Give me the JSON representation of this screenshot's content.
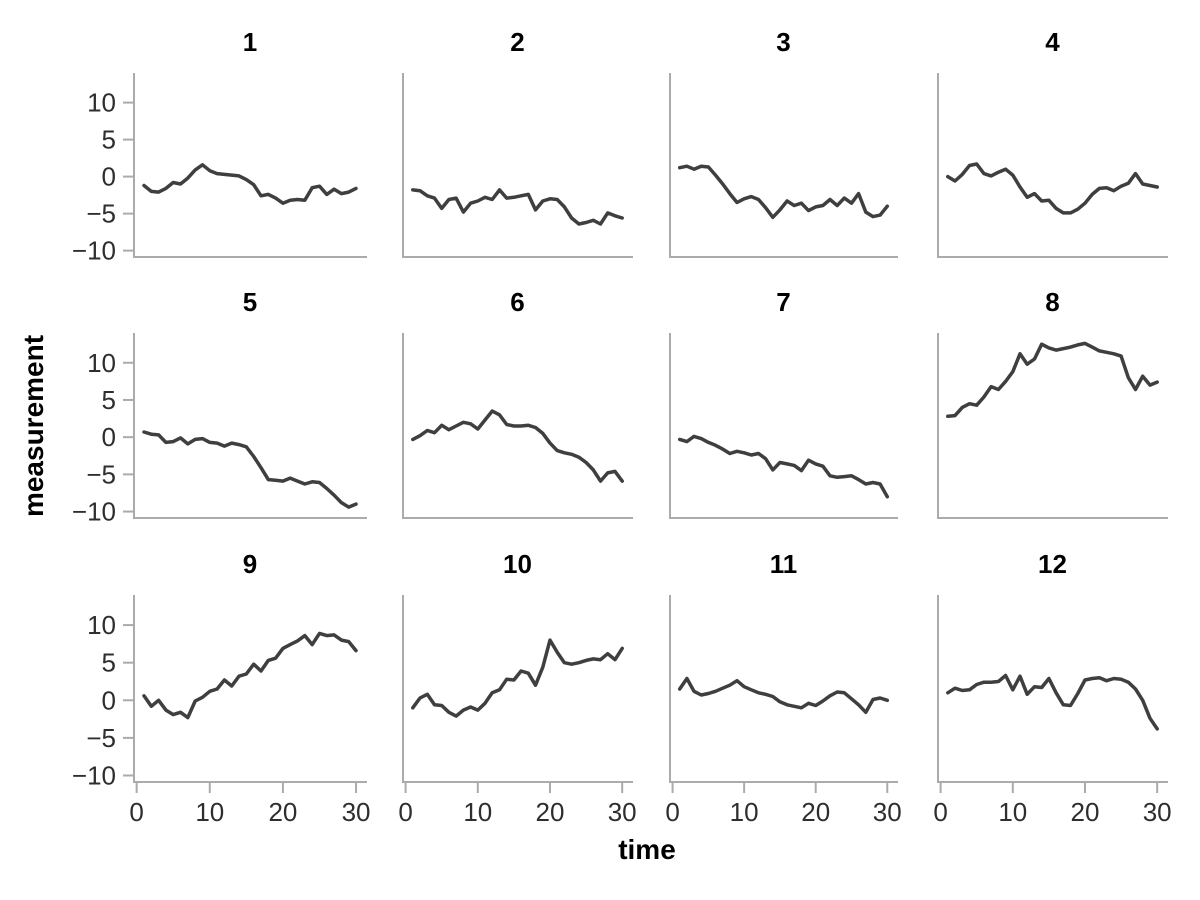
{
  "chart_data": {
    "type": "line",
    "title": "",
    "xlabel": "time",
    "ylabel": "measurement",
    "layout": "facet-grid-3-rows-4-cols",
    "grid": "off",
    "legend": "none",
    "x_range": [
      -0.5,
      31.5
    ],
    "y_range": [
      -11,
      14
    ],
    "x_tick_values": [
      0,
      10,
      20,
      30
    ],
    "x_tick_labels": [
      "0",
      "10",
      "20",
      "30"
    ],
    "y_tick_values": [
      10,
      5,
      0,
      -5,
      -10
    ],
    "y_tick_labels": [
      "10",
      "5",
      "0",
      "−5",
      "−10"
    ],
    "line_color": "#3f3f3f",
    "axis_color": "#ababab",
    "tick_label_color": "#2e2e2e",
    "strip_label_color": "#000000",
    "background_color": "#ffffff",
    "x": [
      1,
      2,
      3,
      4,
      5,
      6,
      7,
      8,
      9,
      10,
      11,
      12,
      13,
      14,
      15,
      16,
      17,
      18,
      19,
      20,
      21,
      22,
      23,
      24,
      25,
      26,
      27,
      28,
      29,
      30
    ],
    "series": [
      {
        "name": "1",
        "values": [
          -1.2,
          -2.0,
          -2.1,
          -1.6,
          -0.8,
          -1.0,
          -0.2,
          0.9,
          1.6,
          0.8,
          0.4,
          0.3,
          0.2,
          0.1,
          -0.4,
          -1.1,
          -2.6,
          -2.4,
          -2.9,
          -3.6,
          -3.2,
          -3.1,
          -3.2,
          -1.5,
          -1.3,
          -2.4,
          -1.7,
          -2.3,
          -2.1,
          -1.6
        ]
      },
      {
        "name": "2",
        "values": [
          -1.8,
          -1.9,
          -2.6,
          -2.9,
          -4.3,
          -3.1,
          -2.9,
          -4.8,
          -3.6,
          -3.3,
          -2.8,
          -3.1,
          -1.8,
          -2.9,
          -2.8,
          -2.6,
          -2.4,
          -4.5,
          -3.3,
          -3.0,
          -3.1,
          -4.1,
          -5.6,
          -6.4,
          -6.2,
          -5.9,
          -6.4,
          -4.9,
          -5.3,
          -5.6
        ]
      },
      {
        "name": "3",
        "values": [
          1.2,
          1.4,
          1.0,
          1.4,
          1.3,
          0.2,
          -1.0,
          -2.3,
          -3.5,
          -3.0,
          -2.7,
          -3.1,
          -4.2,
          -5.5,
          -4.5,
          -3.3,
          -3.9,
          -3.6,
          -4.6,
          -4.1,
          -3.9,
          -3.1,
          -3.9,
          -2.9,
          -3.6,
          -2.3,
          -4.8,
          -5.4,
          -5.2,
          -4.0
        ]
      },
      {
        "name": "4",
        "values": [
          0.0,
          -0.6,
          0.3,
          1.5,
          1.7,
          0.4,
          0.1,
          0.6,
          1.0,
          0.2,
          -1.4,
          -2.8,
          -2.3,
          -3.3,
          -3.2,
          -4.3,
          -4.9,
          -4.9,
          -4.4,
          -3.6,
          -2.4,
          -1.6,
          -1.5,
          -1.9,
          -1.3,
          -0.9,
          0.4,
          -1.0,
          -1.2,
          -1.4
        ]
      },
      {
        "name": "5",
        "values": [
          0.7,
          0.4,
          0.3,
          -0.7,
          -0.6,
          -0.1,
          -0.9,
          -0.3,
          -0.2,
          -0.7,
          -0.8,
          -1.2,
          -0.8,
          -1.0,
          -1.3,
          -2.6,
          -4.1,
          -5.7,
          -5.8,
          -5.9,
          -5.5,
          -5.9,
          -6.3,
          -6.0,
          -6.1,
          -6.9,
          -7.8,
          -8.8,
          -9.4,
          -9.0
        ]
      },
      {
        "name": "6",
        "values": [
          -0.3,
          0.2,
          0.9,
          0.6,
          1.6,
          1.0,
          1.5,
          2.0,
          1.8,
          1.1,
          2.3,
          3.5,
          3.0,
          1.7,
          1.5,
          1.5,
          1.6,
          1.3,
          0.5,
          -0.8,
          -1.8,
          -2.1,
          -2.3,
          -2.7,
          -3.4,
          -4.4,
          -5.9,
          -4.8,
          -4.6,
          -5.9
        ]
      },
      {
        "name": "7",
        "values": [
          -0.3,
          -0.6,
          0.1,
          -0.2,
          -0.7,
          -1.1,
          -1.6,
          -2.2,
          -1.9,
          -2.1,
          -2.4,
          -2.2,
          -2.9,
          -4.4,
          -3.4,
          -3.6,
          -3.8,
          -4.5,
          -3.1,
          -3.6,
          -3.9,
          -5.2,
          -5.4,
          -5.3,
          -5.2,
          -5.7,
          -6.3,
          -6.1,
          -6.3,
          -8.0
        ]
      },
      {
        "name": "8",
        "values": [
          2.8,
          2.9,
          4.0,
          4.5,
          4.3,
          5.4,
          6.8,
          6.4,
          7.5,
          8.8,
          11.2,
          9.8,
          10.5,
          12.5,
          12.0,
          11.7,
          11.9,
          12.1,
          12.4,
          12.6,
          12.1,
          11.6,
          11.4,
          11.2,
          10.9,
          8.0,
          6.4,
          8.2,
          7.0,
          7.4
        ]
      },
      {
        "name": "9",
        "values": [
          0.6,
          -0.8,
          0.0,
          -1.3,
          -1.9,
          -1.6,
          -2.3,
          -0.1,
          0.4,
          1.2,
          1.5,
          2.7,
          1.9,
          3.2,
          3.5,
          4.8,
          3.9,
          5.3,
          5.6,
          6.9,
          7.4,
          7.9,
          8.6,
          7.4,
          8.9,
          8.6,
          8.7,
          8.0,
          7.8,
          6.6
        ]
      },
      {
        "name": "10",
        "values": [
          -1.0,
          0.3,
          0.8,
          -0.6,
          -0.7,
          -1.6,
          -2.1,
          -1.3,
          -0.9,
          -1.3,
          -0.4,
          1.0,
          1.4,
          2.8,
          2.7,
          3.9,
          3.6,
          2.0,
          4.4,
          8.0,
          6.4,
          5.0,
          4.8,
          5.0,
          5.3,
          5.5,
          5.4,
          6.2,
          5.4,
          6.9
        ]
      },
      {
        "name": "11",
        "values": [
          1.5,
          2.9,
          1.2,
          0.7,
          0.9,
          1.2,
          1.6,
          2.0,
          2.6,
          1.8,
          1.4,
          1.0,
          0.8,
          0.5,
          -0.2,
          -0.6,
          -0.8,
          -1.0,
          -0.4,
          -0.7,
          -0.1,
          0.6,
          1.1,
          1.0,
          0.2,
          -0.6,
          -1.6,
          0.1,
          0.3,
          0.0
        ]
      },
      {
        "name": "12",
        "values": [
          1.0,
          1.6,
          1.3,
          1.4,
          2.1,
          2.4,
          2.4,
          2.5,
          3.3,
          1.4,
          3.2,
          0.8,
          1.8,
          1.7,
          2.9,
          1.0,
          -0.6,
          -0.7,
          0.9,
          2.7,
          2.9,
          3.0,
          2.6,
          2.9,
          2.8,
          2.4,
          1.5,
          0.0,
          -2.4,
          -3.8
        ]
      }
    ]
  }
}
